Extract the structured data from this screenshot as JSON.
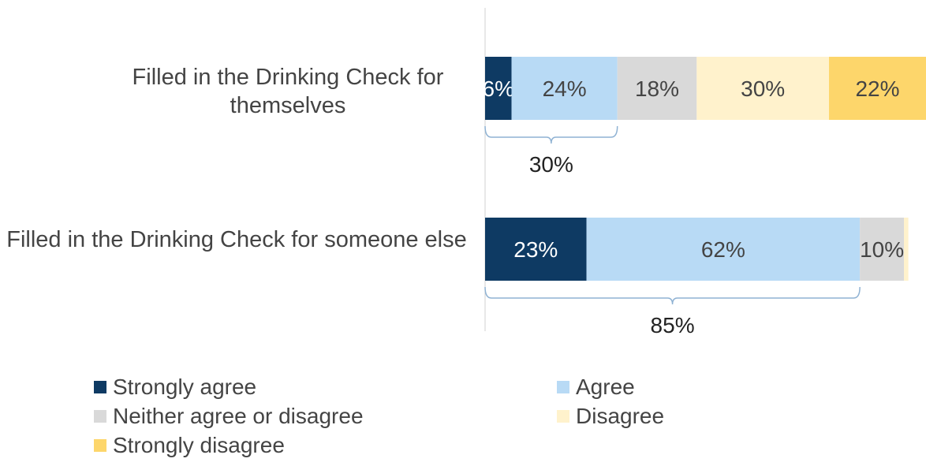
{
  "chart_data": {
    "type": "bar",
    "orientation": "horizontal",
    "stacked": true,
    "categories": [
      "Filled in the Drinking Check for themselves",
      "Filled in the Drinking Check for someone else"
    ],
    "series": [
      {
        "name": "Strongly agree",
        "color": "#0e3a63",
        "values": [
          6,
          23
        ],
        "labels": [
          "6%",
          "23%"
        ]
      },
      {
        "name": "Agree",
        "color": "#b8daf5",
        "values": [
          24,
          62
        ],
        "labels": [
          "24%",
          "62%"
        ]
      },
      {
        "name": "Neither agree or disagree",
        "color": "#d9d9d9",
        "values": [
          18,
          10
        ],
        "labels": [
          "18%",
          "10%"
        ]
      },
      {
        "name": "Disagree",
        "color": "#fff2cc",
        "values": [
          30,
          1
        ],
        "labels": [
          "30%",
          ""
        ]
      },
      {
        "name": "Strongly disagree",
        "color": "#fdd66b",
        "values": [
          22,
          0
        ],
        "labels": [
          "22%",
          ""
        ]
      }
    ],
    "brackets": [
      {
        "category": 0,
        "label": "30%",
        "value": 30
      },
      {
        "category": 1,
        "label": "85%",
        "value": 85
      }
    ],
    "xlim": [
      0,
      100
    ],
    "grid": false,
    "legend_position": "bottom"
  }
}
